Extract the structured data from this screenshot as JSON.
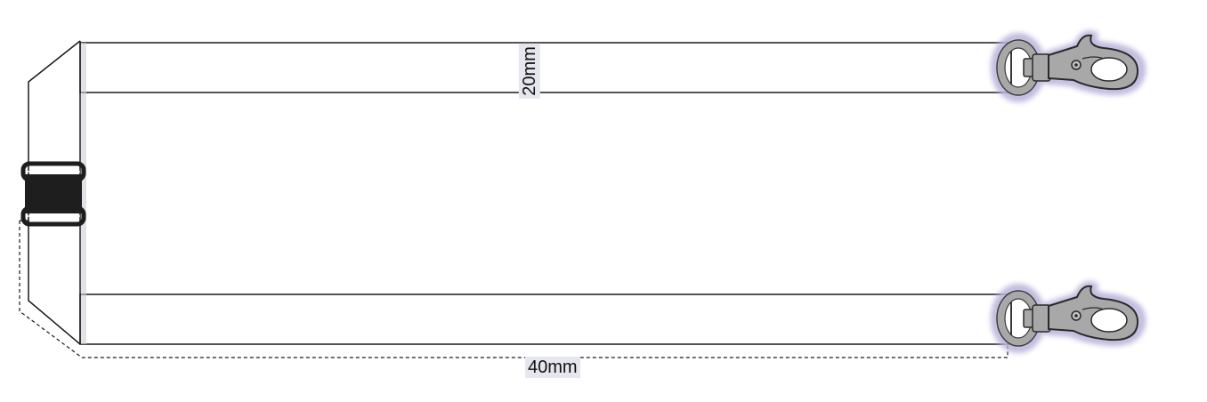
{
  "dimensions": {
    "strap_width": "20mm",
    "total_width": "40mm"
  },
  "colors": {
    "outline": "#1a1a1a",
    "buckle": "#1e1e1e",
    "hook_metal": "#a8a8a8",
    "hook_glow": "#b9b4da",
    "label_bg": "#e6e6ef"
  },
  "icons": {
    "attachment": "swivel-lobster-clasp-icon",
    "adjuster": "safety-breakaway-buckle-icon"
  }
}
